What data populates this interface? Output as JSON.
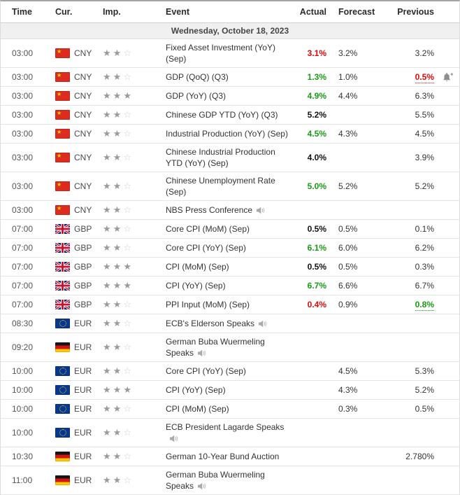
{
  "header": {
    "time": "Time",
    "currency": "Cur.",
    "importance": "Imp.",
    "event": "Event",
    "actual": "Actual",
    "forecast": "Forecast",
    "previous": "Previous"
  },
  "date_header": "Wednesday, October 18, 2023",
  "colors": {
    "positive": "#179b11",
    "negative": "#e00707",
    "neutral_bold": "#111111",
    "text": "#333333",
    "star_filled": "#9a9a9a",
    "star_empty": "#cfcfcf"
  },
  "icons": {
    "speech": "speaker-icon",
    "alert": "bell-plus-icon",
    "star": "importance-star-icon"
  },
  "importance_max": 3,
  "rows": [
    {
      "time": "03:00",
      "currency": "CNY",
      "flag": "cn",
      "importance": 2,
      "event": "Fixed Asset Investment (YoY) (Sep)",
      "speech": false,
      "bell": false,
      "actual": {
        "text": "3.1%",
        "style": "neg"
      },
      "forecast": {
        "text": "3.2%",
        "style": "norm"
      },
      "previous": {
        "text": "3.2%",
        "style": "norm"
      }
    },
    {
      "time": "03:00",
      "currency": "CNY",
      "flag": "cn",
      "importance": 2,
      "event": "GDP (QoQ) (Q3)",
      "speech": false,
      "bell": true,
      "actual": {
        "text": "1.3%",
        "style": "pos"
      },
      "forecast": {
        "text": "1.0%",
        "style": "norm"
      },
      "previous": {
        "text": "0.5%",
        "style": "neg dotted"
      }
    },
    {
      "time": "03:00",
      "currency": "CNY",
      "flag": "cn",
      "importance": 3,
      "event": "GDP (YoY) (Q3)",
      "speech": false,
      "bell": false,
      "actual": {
        "text": "4.9%",
        "style": "pos"
      },
      "forecast": {
        "text": "4.4%",
        "style": "norm"
      },
      "previous": {
        "text": "6.3%",
        "style": "norm"
      }
    },
    {
      "time": "03:00",
      "currency": "CNY",
      "flag": "cn",
      "importance": 2,
      "event": "Chinese GDP YTD (YoY) (Q3)",
      "speech": false,
      "bell": false,
      "actual": {
        "text": "5.2%",
        "style": "bold"
      },
      "forecast": {
        "text": "",
        "style": "norm"
      },
      "previous": {
        "text": "5.5%",
        "style": "norm"
      }
    },
    {
      "time": "03:00",
      "currency": "CNY",
      "flag": "cn",
      "importance": 2,
      "event": "Industrial Production (YoY) (Sep)",
      "speech": false,
      "bell": false,
      "actual": {
        "text": "4.5%",
        "style": "pos"
      },
      "forecast": {
        "text": "4.3%",
        "style": "norm"
      },
      "previous": {
        "text": "4.5%",
        "style": "norm"
      }
    },
    {
      "time": "03:00",
      "currency": "CNY",
      "flag": "cn",
      "importance": 2,
      "event": "Chinese Industrial Production YTD (YoY) (Sep)",
      "speech": false,
      "bell": false,
      "actual": {
        "text": "4.0%",
        "style": "bold"
      },
      "forecast": {
        "text": "",
        "style": "norm"
      },
      "previous": {
        "text": "3.9%",
        "style": "norm"
      }
    },
    {
      "time": "03:00",
      "currency": "CNY",
      "flag": "cn",
      "importance": 2,
      "event": "Chinese Unemployment Rate (Sep)",
      "speech": false,
      "bell": false,
      "actual": {
        "text": "5.0%",
        "style": "pos"
      },
      "forecast": {
        "text": "5.2%",
        "style": "norm"
      },
      "previous": {
        "text": "5.2%",
        "style": "norm"
      }
    },
    {
      "time": "03:00",
      "currency": "CNY",
      "flag": "cn",
      "importance": 2,
      "event": "NBS Press Conference",
      "speech": true,
      "bell": false,
      "actual": {
        "text": "",
        "style": "norm"
      },
      "forecast": {
        "text": "",
        "style": "norm"
      },
      "previous": {
        "text": "",
        "style": "norm"
      }
    },
    {
      "time": "07:00",
      "currency": "GBP",
      "flag": "gb",
      "importance": 2,
      "event": "Core CPI (MoM) (Sep)",
      "speech": false,
      "bell": false,
      "actual": {
        "text": "0.5%",
        "style": "bold"
      },
      "forecast": {
        "text": "0.5%",
        "style": "norm"
      },
      "previous": {
        "text": "0.1%",
        "style": "norm"
      }
    },
    {
      "time": "07:00",
      "currency": "GBP",
      "flag": "gb",
      "importance": 2,
      "event": "Core CPI (YoY) (Sep)",
      "speech": false,
      "bell": false,
      "actual": {
        "text": "6.1%",
        "style": "pos"
      },
      "forecast": {
        "text": "6.0%",
        "style": "norm"
      },
      "previous": {
        "text": "6.2%",
        "style": "norm"
      }
    },
    {
      "time": "07:00",
      "currency": "GBP",
      "flag": "gb",
      "importance": 3,
      "event": "CPI (MoM) (Sep)",
      "speech": false,
      "bell": false,
      "actual": {
        "text": "0.5%",
        "style": "bold"
      },
      "forecast": {
        "text": "0.5%",
        "style": "norm"
      },
      "previous": {
        "text": "0.3%",
        "style": "norm"
      }
    },
    {
      "time": "07:00",
      "currency": "GBP",
      "flag": "gb",
      "importance": 3,
      "event": "CPI (YoY) (Sep)",
      "speech": false,
      "bell": false,
      "actual": {
        "text": "6.7%",
        "style": "pos"
      },
      "forecast": {
        "text": "6.6%",
        "style": "norm"
      },
      "previous": {
        "text": "6.7%",
        "style": "norm"
      }
    },
    {
      "time": "07:00",
      "currency": "GBP",
      "flag": "gb",
      "importance": 2,
      "event": "PPI Input (MoM) (Sep)",
      "speech": false,
      "bell": false,
      "actual": {
        "text": "0.4%",
        "style": "neg"
      },
      "forecast": {
        "text": "0.9%",
        "style": "norm"
      },
      "previous": {
        "text": "0.8%",
        "style": "pos dotted"
      }
    },
    {
      "time": "08:30",
      "currency": "EUR",
      "flag": "eu",
      "importance": 2,
      "event": "ECB's Elderson Speaks",
      "speech": true,
      "bell": false,
      "actual": {
        "text": "",
        "style": "norm"
      },
      "forecast": {
        "text": "",
        "style": "norm"
      },
      "previous": {
        "text": "",
        "style": "norm"
      }
    },
    {
      "time": "09:20",
      "currency": "EUR",
      "flag": "de",
      "importance": 2,
      "event": "German Buba Wuermeling Speaks",
      "speech": true,
      "bell": false,
      "actual": {
        "text": "",
        "style": "norm"
      },
      "forecast": {
        "text": "",
        "style": "norm"
      },
      "previous": {
        "text": "",
        "style": "norm"
      }
    },
    {
      "time": "10:00",
      "currency": "EUR",
      "flag": "eu",
      "importance": 2,
      "event": "Core CPI (YoY) (Sep)",
      "speech": false,
      "bell": false,
      "actual": {
        "text": "",
        "style": "norm"
      },
      "forecast": {
        "text": "4.5%",
        "style": "norm"
      },
      "previous": {
        "text": "5.3%",
        "style": "norm"
      }
    },
    {
      "time": "10:00",
      "currency": "EUR",
      "flag": "eu",
      "importance": 3,
      "event": "CPI (YoY) (Sep)",
      "speech": false,
      "bell": false,
      "actual": {
        "text": "",
        "style": "norm"
      },
      "forecast": {
        "text": "4.3%",
        "style": "norm"
      },
      "previous": {
        "text": "5.2%",
        "style": "norm"
      }
    },
    {
      "time": "10:00",
      "currency": "EUR",
      "flag": "eu",
      "importance": 2,
      "event": "CPI (MoM) (Sep)",
      "speech": false,
      "bell": false,
      "actual": {
        "text": "",
        "style": "norm"
      },
      "forecast": {
        "text": "0.3%",
        "style": "norm"
      },
      "previous": {
        "text": "0.5%",
        "style": "norm"
      }
    },
    {
      "time": "10:00",
      "currency": "EUR",
      "flag": "eu",
      "importance": 2,
      "event": "ECB President Lagarde Speaks",
      "speech": true,
      "bell": false,
      "actual": {
        "text": "",
        "style": "norm"
      },
      "forecast": {
        "text": "",
        "style": "norm"
      },
      "previous": {
        "text": "",
        "style": "norm"
      }
    },
    {
      "time": "10:30",
      "currency": "EUR",
      "flag": "de",
      "importance": 2,
      "event": "German 10-Year Bund Auction",
      "speech": false,
      "bell": false,
      "actual": {
        "text": "",
        "style": "norm"
      },
      "forecast": {
        "text": "",
        "style": "norm"
      },
      "previous": {
        "text": "2.780%",
        "style": "norm"
      }
    },
    {
      "time": "11:00",
      "currency": "EUR",
      "flag": "de",
      "importance": 2,
      "event": "German Buba Wuermeling Speaks",
      "speech": true,
      "bell": false,
      "actual": {
        "text": "",
        "style": "norm"
      },
      "forecast": {
        "text": "",
        "style": "norm"
      },
      "previous": {
        "text": "",
        "style": "norm"
      }
    }
  ]
}
